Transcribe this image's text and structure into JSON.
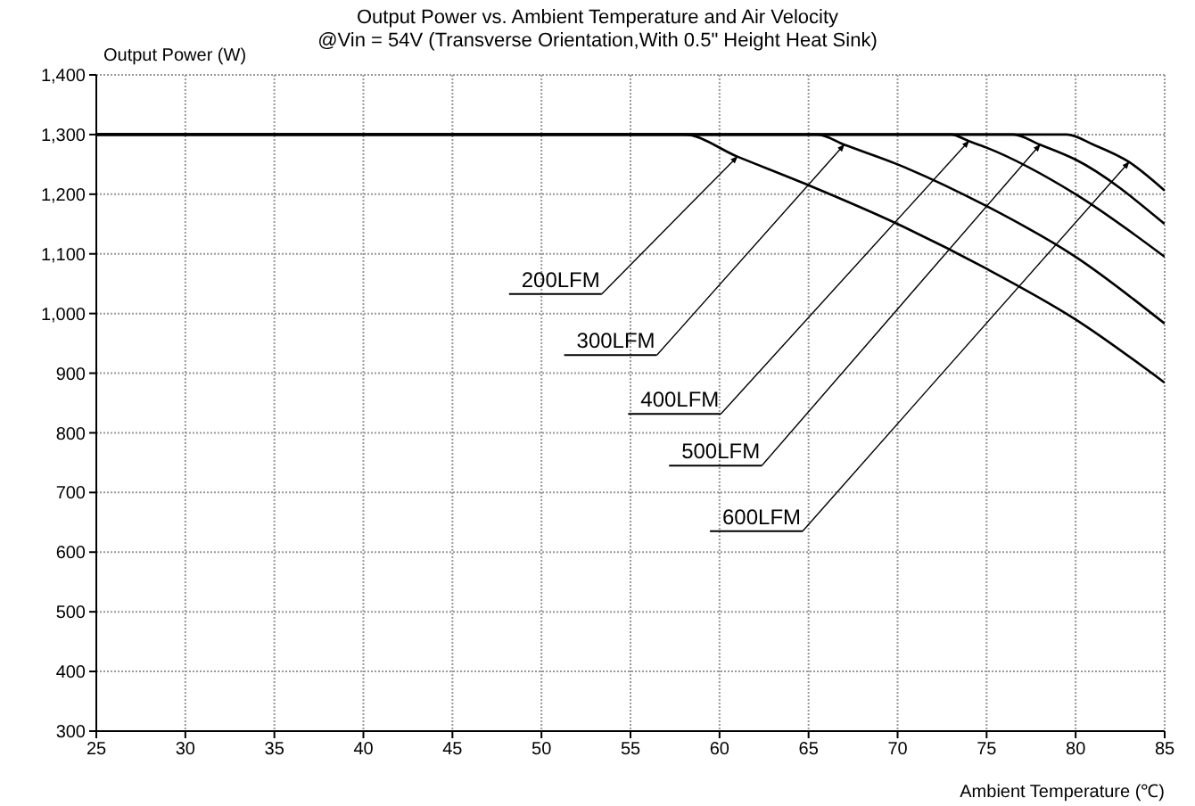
{
  "chart_data": {
    "type": "line",
    "title": "Output Power vs. Ambient Temperature and Air Velocity",
    "subtitle": "@Vin = 54V (Transverse Orientation,With 0.5\" Height Heat Sink)",
    "xlabel": "Ambient Temperature (℃)",
    "ylabel": "Output Power (W)",
    "xlim": [
      25,
      85
    ],
    "xticks": [
      25,
      30,
      35,
      40,
      45,
      50,
      55,
      60,
      65,
      70,
      75,
      80,
      85
    ],
    "ylim": [
      300,
      1400
    ],
    "yticks": [
      300,
      400,
      500,
      600,
      700,
      800,
      900,
      {
        "value": 1000,
        "label": "1,000"
      },
      {
        "value": 1100,
        "label": "1,100"
      },
      {
        "value": 1200,
        "label": "1,200"
      },
      {
        "value": 1300,
        "label": "1,300"
      },
      {
        "value": 1400,
        "label": "1,400"
      }
    ],
    "grid": true,
    "line_style": "solid",
    "series": [
      {
        "color": "#000000",
        "x": [
          25,
          58,
          61,
          65,
          70,
          75,
          80,
          85
        ],
        "values": [
          1300,
          1300,
          1263,
          1215,
          1150,
          1075,
          990,
          884
        ]
      },
      {
        "color": "#000000",
        "x": [
          25,
          65.5,
          67,
          70,
          75,
          80,
          85
        ],
        "values": [
          1300,
          1300,
          1283,
          1250,
          1180,
          1095,
          983
        ]
      },
      {
        "color": "#000000",
        "x": [
          25,
          73,
          74,
          75,
          80,
          85
        ],
        "values": [
          1300,
          1300,
          1289,
          1278,
          1200,
          1095
        ]
      },
      {
        "color": "#000000",
        "x": [
          25,
          76.5,
          78,
          80,
          85
        ],
        "values": [
          1300,
          1300,
          1283,
          1258,
          1150
        ]
      },
      {
        "color": "#000000",
        "x": [
          25,
          79.5,
          81,
          83,
          85
        ],
        "values": [
          1300,
          1300,
          1283,
          1254,
          1206
        ]
      }
    ],
    "annotations": [
      {
        "text": "200LFM",
        "x": 61,
        "y": 1263
      },
      {
        "text": "300LFM",
        "x": 67,
        "y": 1283
      },
      {
        "text": "400LFM",
        "x": 74,
        "y": 1289
      },
      {
        "text": "500LFM",
        "x": 78,
        "y": 1283
      },
      {
        "text": "600LFM",
        "x": 83,
        "y": 1254
      }
    ]
  }
}
